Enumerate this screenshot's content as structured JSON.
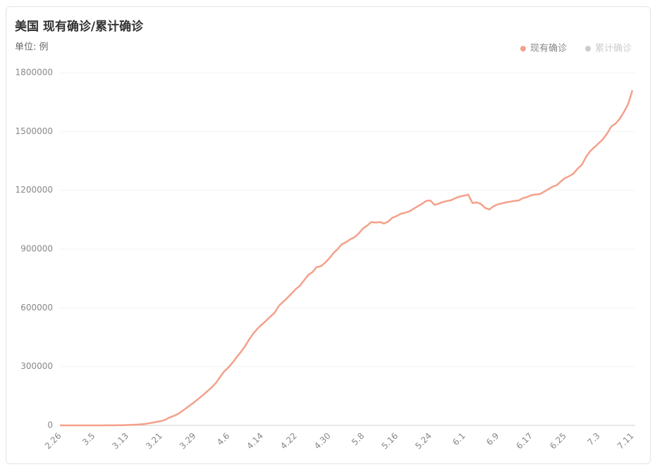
{
  "chart_data": {
    "type": "line",
    "title": "美国 现有确诊/累计确诊",
    "subtitle": "单位: 例",
    "categories": [
      "2.26",
      null,
      null,
      null,
      null,
      null,
      null,
      null,
      "3.5",
      null,
      null,
      null,
      null,
      null,
      null,
      null,
      "3.13",
      null,
      null,
      null,
      null,
      null,
      null,
      null,
      "3.21",
      null,
      null,
      null,
      null,
      null,
      null,
      null,
      "3.29",
      null,
      null,
      null,
      null,
      null,
      null,
      null,
      "4.6",
      null,
      null,
      null,
      null,
      null,
      null,
      null,
      "4.14",
      null,
      null,
      null,
      null,
      null,
      null,
      null,
      "4.22",
      null,
      null,
      null,
      null,
      null,
      null,
      null,
      "4.30",
      null,
      null,
      null,
      null,
      null,
      null,
      null,
      "5.8",
      null,
      null,
      null,
      null,
      null,
      null,
      null,
      "5.16",
      null,
      null,
      null,
      null,
      null,
      null,
      null,
      "5.24",
      null,
      null,
      null,
      null,
      null,
      null,
      null,
      "6.1",
      null,
      null,
      null,
      null,
      null,
      null,
      null,
      "6.9",
      null,
      null,
      null,
      null,
      null,
      null,
      null,
      "6.17",
      null,
      null,
      null,
      null,
      null,
      null,
      null,
      "6.25",
      null,
      null,
      null,
      null,
      null,
      null,
      null,
      "7.3",
      null,
      null,
      null,
      null,
      null,
      null,
      null,
      "7.11"
    ],
    "series": [
      {
        "name": "现有确诊",
        "color": "#f4a08a",
        "values": [
          0,
          0,
          0,
          0,
          0,
          0,
          0,
          0,
          0,
          0,
          100,
          200,
          300,
          500,
          800,
          1200,
          1800,
          2500,
          3500,
          5000,
          7000,
          10000,
          14000,
          18000,
          22000,
          28000,
          40000,
          48000,
          58000,
          72000,
          88000,
          104000,
          120000,
          137000,
          155000,
          174000,
          193000,
          215000,
          245000,
          275000,
          295000,
          320000,
          348000,
          375000,
          405000,
          440000,
          470000,
          495000,
          515000,
          535000,
          555000,
          575000,
          610000,
          630000,
          650000,
          672000,
          695000,
          712000,
          740000,
          768000,
          782000,
          808000,
          812000,
          830000,
          852000,
          880000,
          900000,
          925000,
          935000,
          950000,
          960000,
          980000,
          1005000,
          1020000,
          1038000,
          1035000,
          1038000,
          1030000,
          1040000,
          1060000,
          1068000,
          1080000,
          1085000,
          1092000,
          1105000,
          1118000,
          1130000,
          1145000,
          1148000,
          1125000,
          1132000,
          1140000,
          1145000,
          1150000,
          1160000,
          1168000,
          1172000,
          1178000,
          1135000,
          1138000,
          1130000,
          1110000,
          1102000,
          1118000,
          1128000,
          1133000,
          1138000,
          1142000,
          1146000,
          1148000,
          1160000,
          1165000,
          1175000,
          1178000,
          1180000,
          1192000,
          1205000,
          1218000,
          1225000,
          1245000,
          1262000,
          1272000,
          1285000,
          1310000,
          1330000,
          1370000,
          1400000,
          1420000,
          1440000,
          1460000,
          1490000,
          1525000,
          1540000,
          1565000,
          1600000,
          1640000,
          1710000
        ]
      }
    ],
    "hidden_series": [
      {
        "name": "累计确诊",
        "color": "#cccccc"
      }
    ],
    "ylim": [
      0,
      1800000
    ],
    "yticks": [
      0,
      300000,
      600000,
      900000,
      1200000,
      1500000,
      1800000
    ],
    "grid": true,
    "legend": "top-right"
  }
}
